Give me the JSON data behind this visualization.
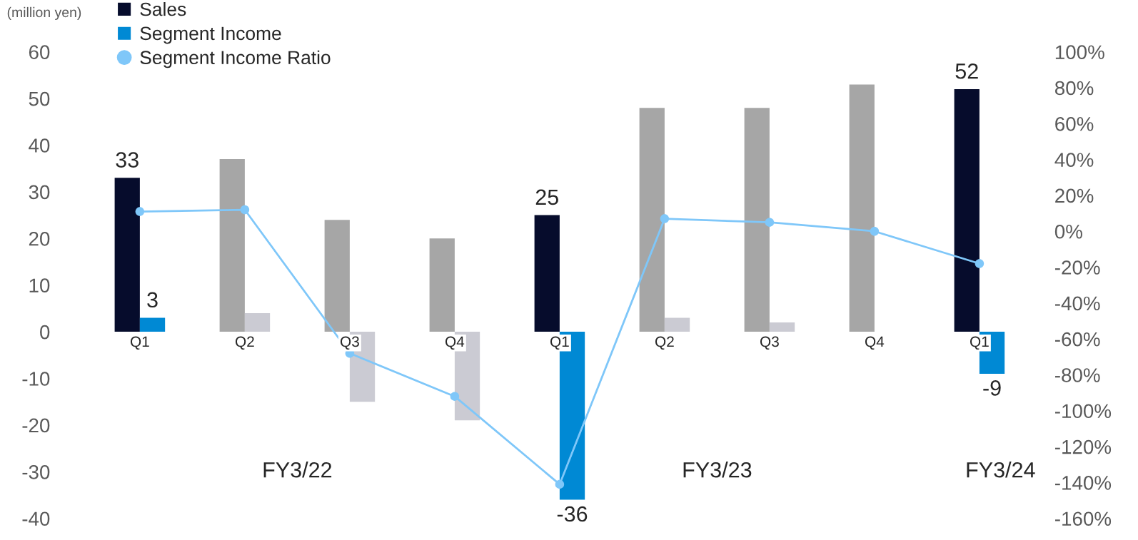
{
  "chart_data": {
    "type": "bar",
    "categories": [
      "Q1",
      "Q2",
      "Q3",
      "Q4",
      "Q1",
      "Q2",
      "Q3",
      "Q4",
      "Q1"
    ],
    "series": [
      {
        "name": "Sales",
        "color": "#060c2c",
        "colors": [
          "#060c2c",
          "#a6a6a6",
          "#a6a6a6",
          "#a6a6a6",
          "#060c2c",
          "#a6a6a6",
          "#a6a6a6",
          "#a6a6a6",
          "#060c2c"
        ],
        "values": [
          33,
          37,
          24,
          20,
          25,
          48,
          48,
          53,
          52
        ],
        "value_labels": [
          "33",
          null,
          null,
          null,
          "25",
          null,
          null,
          null,
          "52"
        ]
      },
      {
        "name": "Segment Income",
        "color": "#0089d4",
        "colors": [
          "#0089d4",
          "#cbcbd3",
          "#cbcbd3",
          "#cbcbd3",
          "#0089d4",
          "#cbcbd3",
          "#cbcbd3",
          "#cbcbd3",
          "#0089d4"
        ],
        "values": [
          3,
          4,
          -15,
          -19,
          -36,
          3,
          2,
          0,
          -9
        ],
        "value_labels": [
          "3",
          null,
          null,
          null,
          "-36",
          null,
          null,
          null,
          "-9"
        ]
      },
      {
        "name": "Segment Income Ratio",
        "type": "line",
        "axis": "y2",
        "color": "#7fc7f9",
        "marker": "circle",
        "values": [
          11,
          12,
          -68,
          -92,
          -141,
          7,
          5,
          0,
          -18
        ]
      }
    ],
    "ylim": [
      -40,
      60
    ],
    "yticks": [
      -40,
      -30,
      -20,
      -10,
      0,
      10,
      20,
      30,
      40,
      50,
      60
    ],
    "y2lim": [
      -160,
      100
    ],
    "y2ticks": [
      {
        "value": -160,
        "label": "-160%"
      },
      {
        "value": -140,
        "label": "-140%"
      },
      {
        "value": -120,
        "label": "-120%"
      },
      {
        "value": -100,
        "label": "-100%"
      },
      {
        "value": -80,
        "label": "-80%"
      },
      {
        "value": -60,
        "label": "-60%"
      },
      {
        "value": -40,
        "label": "-40%"
      },
      {
        "value": -20,
        "label": "-20%"
      },
      {
        "value": 0,
        "label": "0%"
      },
      {
        "value": 20,
        "label": "20%"
      },
      {
        "value": 40,
        "label": "40%"
      },
      {
        "value": 60,
        "label": "60%"
      },
      {
        "value": 80,
        "label": "80%"
      },
      {
        "value": 100,
        "label": "100%"
      }
    ],
    "annotations": [
      "(million yen)",
      "FY3/22",
      "FY3/23",
      "FY3/24"
    ],
    "legend": "top left",
    "grid": false
  }
}
